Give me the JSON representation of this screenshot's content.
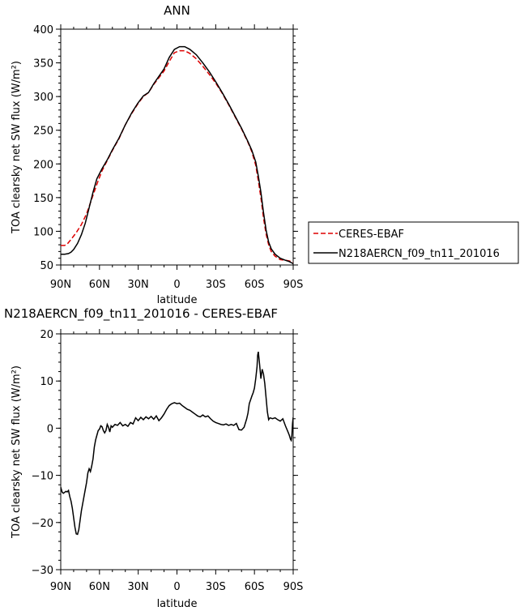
{
  "chart_data": [
    {
      "type": "line",
      "title": "ANN",
      "xlabel": "latitude",
      "ylabel": "TOA clearsky net SW flux (W/m²)",
      "xlim": [
        90,
        -90
      ],
      "ylim": [
        50,
        400
      ],
      "x_tick_values": [
        90,
        60,
        30,
        0,
        -30,
        -60,
        -90
      ],
      "x_tick_labels": [
        "90N",
        "60N",
        "30N",
        "0",
        "30S",
        "60S",
        "90S"
      ],
      "y_tick_values": [
        50,
        100,
        150,
        200,
        250,
        300,
        350,
        400
      ],
      "y_tick_labels": [
        "50",
        "100",
        "150",
        "200",
        "250",
        "300",
        "350",
        "400"
      ],
      "legend_position": "right",
      "series": [
        {
          "name": "CERES-EBAF",
          "color": "#dd0000",
          "dash": "dashed",
          "points": [
            [
              90,
              79
            ],
            [
              87,
              79
            ],
            [
              85,
              81
            ],
            [
              82,
              88
            ],
            [
              78,
              98
            ],
            [
              74,
              110
            ],
            [
              70,
              126
            ],
            [
              66,
              148
            ],
            [
              62,
              170
            ],
            [
              58,
              190
            ],
            [
              54,
              205
            ],
            [
              50,
              220
            ],
            [
              45,
              237
            ],
            [
              40,
              258
            ],
            [
              35,
              275
            ],
            [
              30,
              290
            ],
            [
              26,
              300
            ],
            [
              22,
              306
            ],
            [
              18,
              318
            ],
            [
              14,
              328
            ],
            [
              10,
              338
            ],
            [
              6,
              352
            ],
            [
              2,
              365
            ],
            [
              -2,
              368
            ],
            [
              -6,
              368
            ],
            [
              -10,
              364
            ],
            [
              -15,
              356
            ],
            [
              -20,
              345
            ],
            [
              -25,
              333
            ],
            [
              -30,
              320
            ],
            [
              -35,
              305
            ],
            [
              -40,
              288
            ],
            [
              -45,
              270
            ],
            [
              -50,
              252
            ],
            [
              -55,
              232
            ],
            [
              -58,
              218
            ],
            [
              -61,
              198
            ],
            [
              -63,
              175
            ],
            [
              -65,
              150
            ],
            [
              -67,
              120
            ],
            [
              -69,
              96
            ],
            [
              -71,
              80
            ],
            [
              -73,
              70
            ],
            [
              -76,
              63
            ],
            [
              -80,
              58
            ],
            [
              -84,
              57
            ],
            [
              -87,
              56
            ],
            [
              -90,
              54
            ]
          ]
        },
        {
          "name": "N218AERCN_f09_tn11_201016",
          "color": "#000000",
          "dash": "solid",
          "points": [
            [
              90,
              66
            ],
            [
              87,
              66
            ],
            [
              84,
              67
            ],
            [
              82,
              69
            ],
            [
              80,
              73
            ],
            [
              77,
              82
            ],
            [
              74,
              95
            ],
            [
              71,
              112
            ],
            [
              68,
              135
            ],
            [
              65,
              158
            ],
            [
              62,
              178
            ],
            [
              58,
              193
            ],
            [
              54,
              206
            ],
            [
              50,
              221
            ],
            [
              45,
              238
            ],
            [
              40,
              258
            ],
            [
              35,
              276
            ],
            [
              30,
              291
            ],
            [
              26,
              301
            ],
            [
              22,
              306
            ],
            [
              18,
              319
            ],
            [
              14,
              330
            ],
            [
              10,
              341
            ],
            [
              6,
              358
            ],
            [
              2,
              370
            ],
            [
              -2,
              374
            ],
            [
              -6,
              374
            ],
            [
              -10,
              370
            ],
            [
              -15,
              362
            ],
            [
              -20,
              350
            ],
            [
              -25,
              337
            ],
            [
              -30,
              322
            ],
            [
              -35,
              306
            ],
            [
              -40,
              289
            ],
            [
              -45,
              271
            ],
            [
              -50,
              253
            ],
            [
              -55,
              233
            ],
            [
              -58,
              220
            ],
            [
              -61,
              203
            ],
            [
              -63,
              182
            ],
            [
              -65,
              158
            ],
            [
              -67,
              128
            ],
            [
              -69,
              102
            ],
            [
              -71,
              84
            ],
            [
              -73,
              74
            ],
            [
              -76,
              66
            ],
            [
              -80,
              60
            ],
            [
              -84,
              57
            ],
            [
              -87,
              55
            ],
            [
              -90,
              52
            ]
          ]
        }
      ]
    },
    {
      "type": "line",
      "title": "N218AERCN_f09_tn11_201016 - CERES-EBAF",
      "xlabel": "latitude",
      "ylabel": "TOA clearsky net SW flux (W/m²)",
      "xlim": [
        90,
        -90
      ],
      "ylim": [
        -30,
        20
      ],
      "x_tick_values": [
        90,
        60,
        30,
        0,
        -30,
        -60,
        -90
      ],
      "x_tick_labels": [
        "90N",
        "60N",
        "30N",
        "0",
        "30S",
        "60S",
        "90S"
      ],
      "y_tick_values": [
        -30,
        -20,
        -10,
        0,
        10,
        20
      ],
      "y_tick_labels": [
        "−30",
        "−20",
        "−10",
        "0",
        "10",
        "20"
      ],
      "series": [
        {
          "color": "#000000",
          "dash": "solid",
          "points": [
            [
              90,
              -12.5
            ],
            [
              89,
              -13.5
            ],
            [
              88,
              -13.8
            ],
            [
              87,
              -13.6
            ],
            [
              86,
              -13.4
            ],
            [
              85,
              -13.5
            ],
            [
              84,
              -13.2
            ],
            [
              83,
              -14.5
            ],
            [
              82,
              -15.5
            ],
            [
              81,
              -17
            ],
            [
              80,
              -19
            ],
            [
              79,
              -21
            ],
            [
              78,
              -22.4
            ],
            [
              77,
              -22.5
            ],
            [
              76,
              -21.5
            ],
            [
              75,
              -19.5
            ],
            [
              74,
              -17.5
            ],
            [
              73,
              -16
            ],
            [
              72,
              -14.5
            ],
            [
              71,
              -13
            ],
            [
              70,
              -11.5
            ],
            [
              69,
              -9.5
            ],
            [
              68,
              -8.6
            ],
            [
              67,
              -9.2
            ],
            [
              66,
              -8
            ],
            [
              65,
              -6.5
            ],
            [
              64,
              -4
            ],
            [
              63,
              -2.5
            ],
            [
              62,
              -1.5
            ],
            [
              61,
              -0.5
            ],
            [
              60,
              -0.2
            ],
            [
              59,
              0.5
            ],
            [
              58,
              0.3
            ],
            [
              57,
              -0.5
            ],
            [
              56,
              -1
            ],
            [
              55,
              -0.5
            ],
            [
              54,
              0.8
            ],
            [
              53,
              0.2
            ],
            [
              52,
              -0.8
            ],
            [
              51,
              0.5
            ],
            [
              50,
              0.2
            ],
            [
              48,
              0.8
            ],
            [
              46,
              0.6
            ],
            [
              44,
              1.2
            ],
            [
              42,
              0.5
            ],
            [
              40,
              0.8
            ],
            [
              38,
              0.4
            ],
            [
              36,
              1.2
            ],
            [
              34,
              0.9
            ],
            [
              32,
              2.2
            ],
            [
              30,
              1.6
            ],
            [
              28,
              2.3
            ],
            [
              26,
              1.8
            ],
            [
              24,
              2.4
            ],
            [
              22,
              2.0
            ],
            [
              20,
              2.5
            ],
            [
              18,
              1.9
            ],
            [
              16,
              2.6
            ],
            [
              14,
              1.6
            ],
            [
              12,
              2.2
            ],
            [
              10,
              3.0
            ],
            [
              8,
              4.0
            ],
            [
              6,
              4.8
            ],
            [
              4,
              5.2
            ],
            [
              2,
              5.4
            ],
            [
              0,
              5.2
            ],
            [
              -2,
              5.3
            ],
            [
              -4,
              4.8
            ],
            [
              -6,
              4.4
            ],
            [
              -8,
              4.0
            ],
            [
              -10,
              3.8
            ],
            [
              -12,
              3.4
            ],
            [
              -14,
              3.0
            ],
            [
              -16,
              2.6
            ],
            [
              -18,
              2.4
            ],
            [
              -20,
              2.8
            ],
            [
              -22,
              2.4
            ],
            [
              -24,
              2.6
            ],
            [
              -26,
              2.0
            ],
            [
              -28,
              1.5
            ],
            [
              -30,
              1.2
            ],
            [
              -32,
              1.0
            ],
            [
              -34,
              0.8
            ],
            [
              -36,
              0.7
            ],
            [
              -38,
              0.9
            ],
            [
              -40,
              0.6
            ],
            [
              -42,
              0.8
            ],
            [
              -44,
              0.6
            ],
            [
              -46,
              1.0
            ],
            [
              -48,
              -0.3
            ],
            [
              -50,
              -0.4
            ],
            [
              -52,
              0.2
            ],
            [
              -54,
              2.0
            ],
            [
              -55,
              3.2
            ],
            [
              -56,
              5.2
            ],
            [
              -57,
              6.0
            ],
            [
              -58,
              6.8
            ],
            [
              -59,
              7.5
            ],
            [
              -60,
              8.5
            ],
            [
              -61,
              10.5
            ],
            [
              -62,
              13
            ],
            [
              -62.5,
              15.5
            ],
            [
              -63,
              16.2
            ],
            [
              -64,
              13.5
            ],
            [
              -65,
              10.5
            ],
            [
              -66,
              12.5
            ],
            [
              -67,
              11.5
            ],
            [
              -68,
              9.5
            ],
            [
              -69,
              6.5
            ],
            [
              -70,
              3.5
            ],
            [
              -71,
              1.8
            ],
            [
              -72,
              2.2
            ],
            [
              -74,
              2.0
            ],
            [
              -76,
              2.2
            ],
            [
              -78,
              1.8
            ],
            [
              -80,
              1.5
            ],
            [
              -82,
              2.0
            ],
            [
              -84,
              0.5
            ],
            [
              -86,
              -0.8
            ],
            [
              -87,
              -1.5
            ],
            [
              -88,
              -2.4
            ],
            [
              -88.5,
              -2.6
            ],
            [
              -89,
              -1.5
            ],
            [
              -89.5,
              1.0
            ],
            [
              -90,
              2.3
            ]
          ]
        }
      ]
    }
  ]
}
